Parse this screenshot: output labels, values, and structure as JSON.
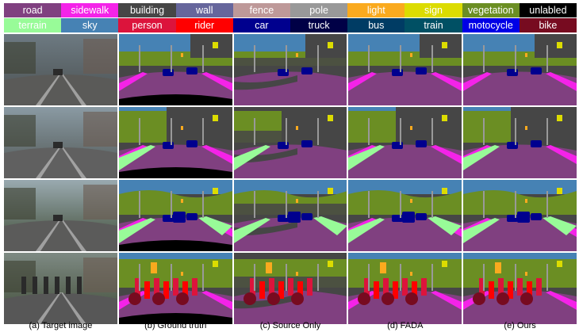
{
  "legend": [
    [
      {
        "label": "road",
        "color": "#804080",
        "text_color": "#ffffff"
      },
      {
        "label": "sidewalk",
        "color": "#f423e8",
        "text_color": "#ffffff"
      },
      {
        "label": "building",
        "color": "#464646",
        "text_color": "#ffffff"
      },
      {
        "label": "wall",
        "color": "#66669c",
        "text_color": "#ffffff"
      },
      {
        "label": "fence",
        "color": "#be9999",
        "text_color": "#ffffff"
      },
      {
        "label": "pole",
        "color": "#999999",
        "text_color": "#ffffff"
      },
      {
        "label": "light",
        "color": "#faaa1e",
        "text_color": "#ffffff"
      },
      {
        "label": "sign",
        "color": "#dcdc00",
        "text_color": "#ffffff"
      },
      {
        "label": "vegetation",
        "color": "#6b8e23",
        "text_color": "#ffffff"
      },
      {
        "label": "unlabled",
        "color": "#000000",
        "text_color": "#ffffff"
      }
    ],
    [
      {
        "label": "terrain",
        "color": "#98fb98",
        "text_color": "#ffffff"
      },
      {
        "label": "sky",
        "color": "#4682b4",
        "text_color": "#ffffff"
      },
      {
        "label": "person",
        "color": "#dc143c",
        "text_color": "#ffffff"
      },
      {
        "label": "rider",
        "color": "#ff0000",
        "text_color": "#ffffff"
      },
      {
        "label": "car",
        "color": "#00008e",
        "text_color": "#ffffff"
      },
      {
        "label": "truck",
        "color": "#000046",
        "text_color": "#ffffff"
      },
      {
        "label": "bus",
        "color": "#003c64",
        "text_color": "#ffffff"
      },
      {
        "label": "train",
        "color": "#005064",
        "text_color": "#ffffff"
      },
      {
        "label": "motocycle",
        "color": "#0000e6",
        "text_color": "#ffffff"
      },
      {
        "label": "bike",
        "color": "#770b20",
        "text_color": "#ffffff"
      }
    ]
  ],
  "columns": [
    {
      "caption": "(a) Target image",
      "kind": "photo"
    },
    {
      "caption": "(b)  Ground truth",
      "kind": "gt"
    },
    {
      "caption": "(c)  Source Only",
      "kind": "source"
    },
    {
      "caption": "(d)  FADA",
      "kind": "fada"
    },
    {
      "caption": "(e)  Ours",
      "kind": "ours"
    }
  ],
  "rows": 4
}
